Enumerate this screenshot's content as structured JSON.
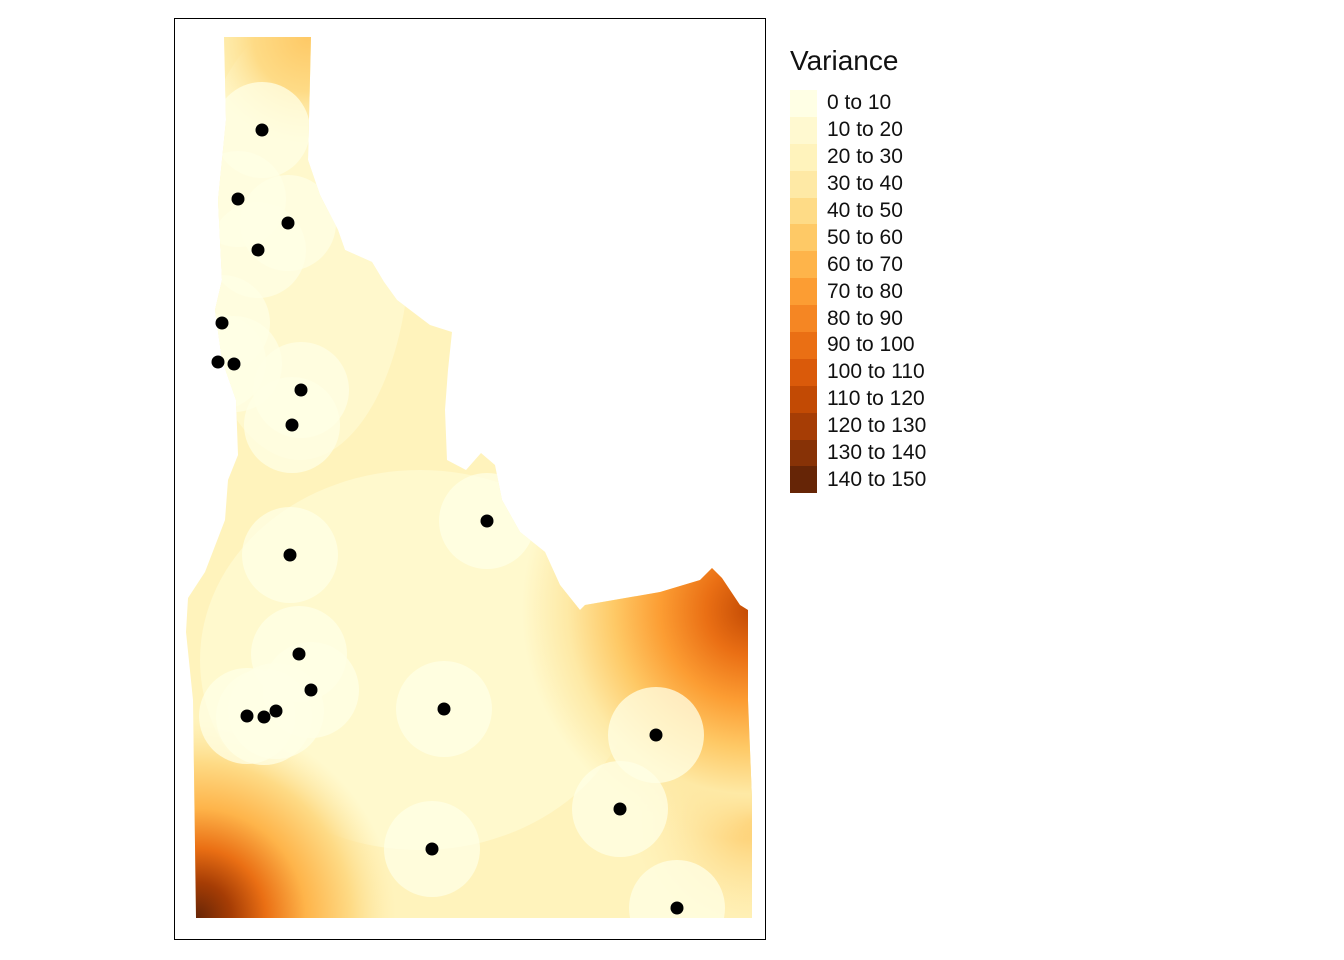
{
  "legend": {
    "title": "Variance",
    "classes": [
      {
        "label": "0 to 10",
        "color": "#FFFFE5"
      },
      {
        "label": "10 to 20",
        "color": "#FFF9D0"
      },
      {
        "label": "20 to 30",
        "color": "#FFF3BC"
      },
      {
        "label": "30 to 40",
        "color": "#FEE9A5"
      },
      {
        "label": "40 to 50",
        "color": "#FEDB86"
      },
      {
        "label": "50 to 60",
        "color": "#FEC966"
      },
      {
        "label": "60 to 70",
        "color": "#FEB44A"
      },
      {
        "label": "70 to 80",
        "color": "#FC9D33"
      },
      {
        "label": "80 to 90",
        "color": "#F58623"
      },
      {
        "label": "90 to 100",
        "color": "#EA6F14"
      },
      {
        "label": "100 to 110",
        "color": "#DA5A0A"
      },
      {
        "label": "110 to 120",
        "color": "#C24A04"
      },
      {
        "label": "120 to 130",
        "color": "#A63D05"
      },
      {
        "label": "130 to 140",
        "color": "#873206"
      },
      {
        "label": "140 to 150",
        "color": "#662506"
      }
    ]
  },
  "colors": {
    "frame": "#000000",
    "points": "#000000"
  }
}
